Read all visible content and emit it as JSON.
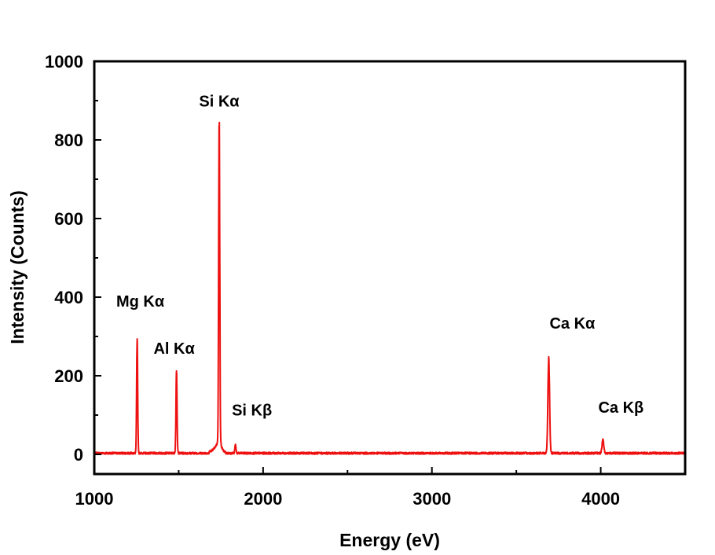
{
  "chart_data": {
    "type": "line",
    "title": "",
    "xlabel": "Energy (eV)",
    "ylabel": "Intensity (Counts)",
    "xlim": [
      1000,
      4500
    ],
    "ylim": [
      -50,
      1000
    ],
    "x_ticks": [
      "1000",
      "2000",
      "3000",
      "4000"
    ],
    "y_ticks": [
      "0",
      "200",
      "400",
      "600",
      "800",
      "1000"
    ],
    "grid": false,
    "legend": "none",
    "series_color": "#ee1111",
    "baseline": 3,
    "peaks": [
      {
        "label": "Mg Kα",
        "energy": 1254,
        "intensity": 292
      },
      {
        "label": "Al Kα",
        "energy": 1487,
        "intensity": 214
      },
      {
        "label": "Si Kα",
        "energy": 1740,
        "intensity": 835
      },
      {
        "label": "Si Kβ",
        "energy": 1836,
        "intensity": 25
      },
      {
        "label": "Ca Kα",
        "energy": 3692,
        "intensity": 246
      },
      {
        "label": "Ca Kβ",
        "energy": 4013,
        "intensity": 38
      }
    ]
  }
}
